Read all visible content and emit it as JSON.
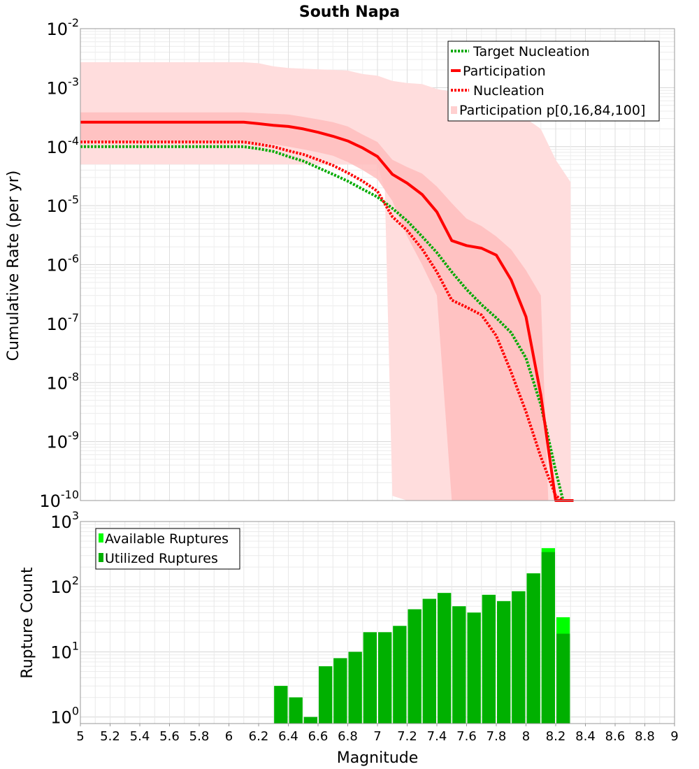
{
  "chart_data": [
    {
      "type": "line",
      "title": "South Napa",
      "xlabel": "Magnitude",
      "ylabel": "Cumulative Rate (per yr)",
      "xlim": [
        5,
        9
      ],
      "ylim_log10": [
        -10,
        -2
      ],
      "yscale": "log",
      "grid": true,
      "legend_position": "top-right",
      "y_tick_bases": [
        "10",
        "10",
        "10",
        "10",
        "10",
        "10",
        "10",
        "10",
        "10"
      ],
      "y_tick_exponents": [
        "-10",
        "-9",
        "-8",
        "-7",
        "-6",
        "-5",
        "-4",
        "-3",
        "-2"
      ],
      "legend": [
        "Target Nucleation",
        "Participation",
        "Nucleation",
        "Participation p[0,16,84,100]"
      ],
      "colors": {
        "target_nucleation": "#00aa00",
        "participation": "#ff0000",
        "nucleation": "#ff0000",
        "band_outer": "#ffdddd",
        "band_inner": "#ffbdbd",
        "grid": "#e4e4e4"
      },
      "series": [
        {
          "name": "Target Nucleation",
          "style": "dotted",
          "color": "#00aa00",
          "x": [
            5.0,
            6.1,
            6.2,
            6.3,
            6.4,
            6.5,
            6.6,
            6.7,
            6.8,
            6.9,
            7.0,
            7.1,
            7.2,
            7.3,
            7.4,
            7.5,
            7.6,
            7.7,
            7.8,
            7.9,
            8.0,
            8.1,
            8.2,
            8.25,
            8.3,
            8.31
          ],
          "y": [
            0.0001,
            0.0001,
            9.2e-05,
            8.3e-05,
            6.8e-05,
            5.7e-05,
            4.4e-05,
            3.4e-05,
            2.6e-05,
            1.9e-05,
            1.4e-05,
            9e-06,
            5.5e-06,
            3e-06,
            1.6e-06,
            7.5e-07,
            3.8e-07,
            2.1e-07,
            1.25e-07,
            7e-08,
            2.6e-08,
            4.2e-09,
            3.2e-10,
            5e-11,
            5e-11,
            5e-11
          ]
        },
        {
          "name": "Participation",
          "style": "solid",
          "color": "#ff0000",
          "x": [
            5.0,
            6.1,
            6.2,
            6.3,
            6.4,
            6.5,
            6.6,
            6.7,
            6.8,
            6.9,
            7.0,
            7.1,
            7.2,
            7.3,
            7.4,
            7.5,
            7.6,
            7.7,
            7.8,
            7.9,
            8.0,
            8.1,
            8.2,
            8.3,
            8.32
          ],
          "y": [
            0.00026,
            0.00026,
            0.000245,
            0.00023,
            0.00022,
            0.0002,
            0.000175,
            0.00015,
            0.000125,
            9.5e-05,
            6.8e-05,
            3.4e-05,
            2.4e-05,
            1.55e-05,
            7.8e-06,
            2.55e-06,
            2.1e-06,
            1.9e-06,
            1.45e-06,
            5.5e-07,
            1.3e-07,
            6.2e-09,
            6e-11,
            6e-11,
            6e-11
          ]
        },
        {
          "name": "Nucleation",
          "style": "dotted",
          "color": "#ff0000",
          "x": [
            5.0,
            6.1,
            6.2,
            6.3,
            6.4,
            6.5,
            6.6,
            6.7,
            6.8,
            6.9,
            7.0,
            7.1,
            7.2,
            7.3,
            7.4,
            7.5,
            7.6,
            7.7,
            7.8,
            7.9,
            8.0,
            8.1,
            8.2,
            8.25,
            8.3,
            8.31
          ],
          "y": [
            0.00012,
            0.00012,
            0.00011,
            0.0001,
            8.5e-05,
            7.4e-05,
            6e-05,
            4.8e-05,
            3.6e-05,
            2.6e-05,
            1.75e-05,
            6.5e-06,
            3.8e-06,
            1.85e-06,
            7.5e-07,
            2.5e-07,
            1.9e-07,
            1.4e-07,
            6.2e-08,
            1.5e-08,
            3.2e-09,
            5.5e-10,
            1.2e-10,
            5e-11,
            5e-11,
            5e-11
          ]
        },
        {
          "name": "Participation p[0,16,84,100]",
          "style": "band",
          "band_outer": {
            "upper_x": [
              5.0,
              6.1,
              6.2,
              6.3,
              6.4,
              6.5,
              6.6,
              6.7,
              6.8,
              6.9,
              7.0,
              7.1,
              7.2,
              7.3,
              7.4,
              7.5,
              7.6,
              7.7,
              7.8,
              7.9,
              8.0,
              8.1,
              8.2,
              8.3
            ],
            "upper_y": [
              0.0027,
              0.0027,
              0.0026,
              0.0023,
              0.00215,
              0.0021,
              0.00205,
              0.002,
              0.00195,
              0.0017,
              0.0016,
              0.0013,
              0.0012,
              0.00115,
              0.00095,
              0.00085,
              0.00075,
              0.00055,
              0.00048,
              0.00037,
              0.0003,
              0.0002,
              6e-05,
              2.5e-05
            ],
            "lower_x": [
              5.0,
              6.1,
              6.2,
              6.3,
              6.4,
              6.5,
              6.6,
              6.7,
              6.8,
              6.9,
              7.0,
              7.05,
              7.1,
              7.2,
              7.3,
              7.4,
              7.5,
              7.6,
              7.7,
              7.8,
              7.9,
              8.0,
              8.1,
              8.2,
              8.3
            ],
            "lower_y": [
              5e-05,
              5e-05,
              5e-05,
              5e-05,
              5e-05,
              5e-05,
              5e-05,
              5e-05,
              5e-05,
              5e-05,
              5e-05,
              1.8e-05,
              1.2e-10,
              1e-10,
              1e-10,
              1e-10,
              1e-10,
              1e-10,
              1e-10,
              1e-10,
              1e-10,
              1e-10,
              1e-10,
              1e-10,
              1e-10
            ]
          },
          "band_inner": {
            "upper_x": [
              5.0,
              6.1,
              6.2,
              6.3,
              6.4,
              6.5,
              6.6,
              6.7,
              6.8,
              6.9,
              7.0,
              7.1,
              7.2,
              7.3,
              7.4,
              7.5,
              7.6,
              7.7,
              7.8,
              7.9,
              8.0,
              8.1,
              8.15
            ],
            "upper_y": [
              0.00038,
              0.00038,
              0.00037,
              0.00036,
              0.00035,
              0.00032,
              0.00029,
              0.00026,
              0.00022,
              0.00016,
              0.00012,
              6e-05,
              4.5e-05,
              3.5e-05,
              2.1e-05,
              1.1e-05,
              6e-06,
              4.5e-06,
              3e-06,
              1.8e-06,
              8e-07,
              3e-07,
              1e-10
            ],
            "lower_x": [
              5.0,
              6.1,
              6.2,
              6.3,
              6.4,
              6.5,
              6.6,
              6.7,
              6.8,
              6.9,
              7.0,
              7.1,
              7.2,
              7.3,
              7.4,
              7.5,
              7.6,
              7.7,
              7.8,
              7.9,
              8.0,
              8.1,
              8.15
            ],
            "lower_y": [
              0.00012,
              0.00012,
              0.000115,
              0.00011,
              0.0001,
              9e-05,
              8e-05,
              7e-05,
              5.5e-05,
              4e-05,
              2.8e-05,
              1.2e-05,
              3e-06,
              1e-06,
              3e-07,
              1e-10,
              1e-10,
              1e-10,
              1e-10,
              1e-10,
              1e-10,
              1e-10,
              1e-10
            ]
          }
        }
      ]
    },
    {
      "type": "bar",
      "xlabel": "Magnitude",
      "ylabel": "Rupture Count",
      "yscale": "log",
      "ylim_log10": [
        -0.1,
        3
      ],
      "grid": true,
      "legend_position": "top-left",
      "legend": [
        "Available Ruptures",
        "Utilized Ruptures"
      ],
      "colors": {
        "available": "#00ff00",
        "utilized": "#00b000"
      },
      "y_tick_bases": [
        "10",
        "10",
        "10",
        "10"
      ],
      "y_tick_exponents": [
        "0",
        "1",
        "2",
        "3"
      ],
      "x_ticks": [
        "5",
        "5.2",
        "5.4",
        "5.6",
        "5.8",
        "6",
        "6.2",
        "6.4",
        "6.6",
        "6.8",
        "7",
        "7.2",
        "7.4",
        "7.6",
        "7.8",
        "8",
        "8.2",
        "8.4",
        "8.6",
        "8.8",
        "9"
      ],
      "bin_width": 0.1,
      "categories": [
        6.35,
        6.45,
        6.55,
        6.65,
        6.75,
        6.85,
        6.95,
        7.05,
        7.15,
        7.25,
        7.35,
        7.45,
        7.55,
        7.65,
        7.75,
        7.85,
        7.95,
        8.05,
        8.15,
        8.25
      ],
      "series": [
        {
          "name": "Available Ruptures",
          "values": [
            3,
            2,
            1,
            6,
            8,
            10,
            20,
            20,
            25,
            45,
            65,
            80,
            50,
            40,
            75,
            60,
            85,
            160,
            390,
            34
          ]
        },
        {
          "name": "Utilized Ruptures",
          "values": [
            3,
            2,
            1,
            6,
            8,
            10,
            20,
            20,
            25,
            45,
            65,
            80,
            50,
            40,
            75,
            60,
            85,
            160,
            340,
            19
          ]
        }
      ]
    }
  ]
}
